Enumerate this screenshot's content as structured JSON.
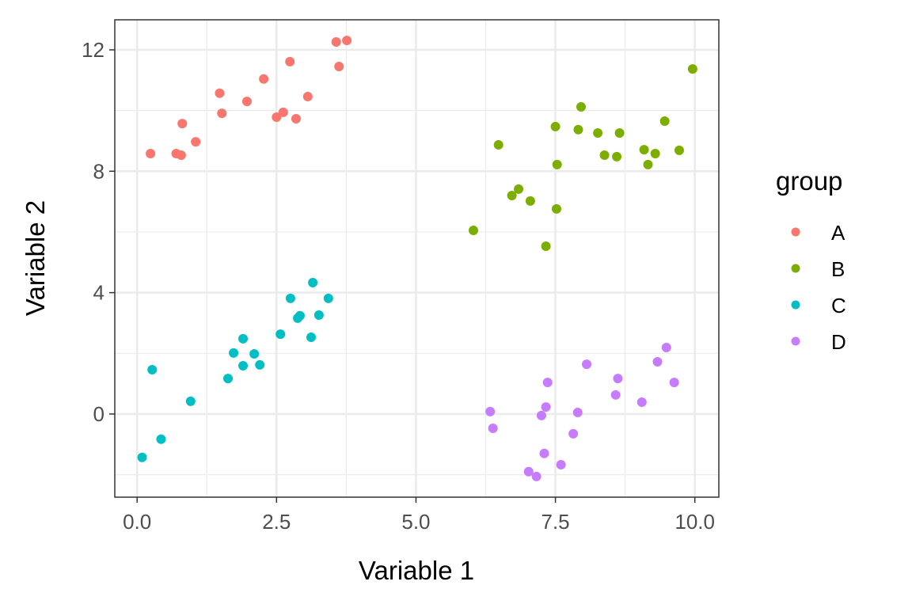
{
  "chart_data": {
    "type": "scatter",
    "xlabel": "Variable 1",
    "ylabel": "Variable 2",
    "xlim": [
      -0.4,
      10.43
    ],
    "ylim": [
      -2.74,
      12.99
    ],
    "x_ticks": [
      0,
      2.5,
      5,
      7.5,
      10
    ],
    "x_tick_labels": [
      "0.0",
      "2.5",
      "5.0",
      "7.5",
      "10.0"
    ],
    "y_ticks": [
      0,
      4,
      8,
      12
    ],
    "y_tick_labels": [
      "0",
      "4",
      "8",
      "12"
    ],
    "grid": true,
    "legend": {
      "title": "group",
      "placement": "right"
    },
    "series": [
      {
        "name": "A",
        "color": "#F8766D",
        "points": [
          [
            0.24,
            8.58
          ],
          [
            0.7,
            8.58
          ],
          [
            0.79,
            8.53
          ],
          [
            0.81,
            9.57
          ],
          [
            1.05,
            8.97
          ],
          [
            1.48,
            10.57
          ],
          [
            1.52,
            9.91
          ],
          [
            1.97,
            10.3
          ],
          [
            2.27,
            11.04
          ],
          [
            2.5,
            9.78
          ],
          [
            2.62,
            9.94
          ],
          [
            2.74,
            11.61
          ],
          [
            2.85,
            9.73
          ],
          [
            3.06,
            10.46
          ],
          [
            3.57,
            12.26
          ],
          [
            3.76,
            12.31
          ],
          [
            3.62,
            11.45
          ]
        ]
      },
      {
        "name": "B",
        "color": "#7CAE00",
        "points": [
          [
            6.03,
            6.05
          ],
          [
            6.48,
            8.87
          ],
          [
            6.72,
            7.2
          ],
          [
            6.84,
            7.41
          ],
          [
            7.05,
            7.02
          ],
          [
            7.33,
            5.53
          ],
          [
            7.5,
            9.47
          ],
          [
            7.53,
            8.22
          ],
          [
            7.52,
            6.76
          ],
          [
            7.91,
            9.37
          ],
          [
            7.96,
            10.12
          ],
          [
            8.26,
            9.26
          ],
          [
            8.38,
            8.53
          ],
          [
            8.6,
            8.48
          ],
          [
            8.65,
            9.26
          ],
          [
            9.09,
            8.71
          ],
          [
            9.16,
            8.22
          ],
          [
            9.29,
            8.58
          ],
          [
            9.46,
            9.65
          ],
          [
            9.72,
            8.69
          ],
          [
            9.96,
            11.37
          ]
        ]
      },
      {
        "name": "C",
        "color": "#00BFC4",
        "points": [
          [
            0.09,
            -1.43
          ],
          [
            0.27,
            1.46
          ],
          [
            0.43,
            -0.83
          ],
          [
            0.96,
            0.42
          ],
          [
            1.63,
            1.17
          ],
          [
            1.73,
            2.01
          ],
          [
            1.9,
            2.48
          ],
          [
            1.9,
            1.59
          ],
          [
            2.1,
            1.98
          ],
          [
            2.2,
            1.62
          ],
          [
            2.57,
            2.63
          ],
          [
            2.75,
            3.81
          ],
          [
            2.88,
            3.16
          ],
          [
            2.92,
            3.24
          ],
          [
            3.12,
            2.53
          ],
          [
            3.15,
            4.33
          ],
          [
            3.26,
            3.26
          ],
          [
            3.43,
            3.81
          ]
        ]
      },
      {
        "name": "D",
        "color": "#C77CFF",
        "points": [
          [
            6.33,
            0.08
          ],
          [
            6.38,
            -0.47
          ],
          [
            7.02,
            -1.9
          ],
          [
            7.16,
            -2.06
          ],
          [
            7.25,
            -0.05
          ],
          [
            7.3,
            -1.3
          ],
          [
            7.33,
            0.23
          ],
          [
            7.36,
            1.04
          ],
          [
            7.6,
            -1.67
          ],
          [
            7.82,
            -0.65
          ],
          [
            7.9,
            0.05
          ],
          [
            8.06,
            1.64
          ],
          [
            8.58,
            0.63
          ],
          [
            8.62,
            1.17
          ],
          [
            9.05,
            0.39
          ],
          [
            9.33,
            1.72
          ],
          [
            9.49,
            2.19
          ],
          [
            9.63,
            1.04
          ]
        ]
      }
    ]
  }
}
